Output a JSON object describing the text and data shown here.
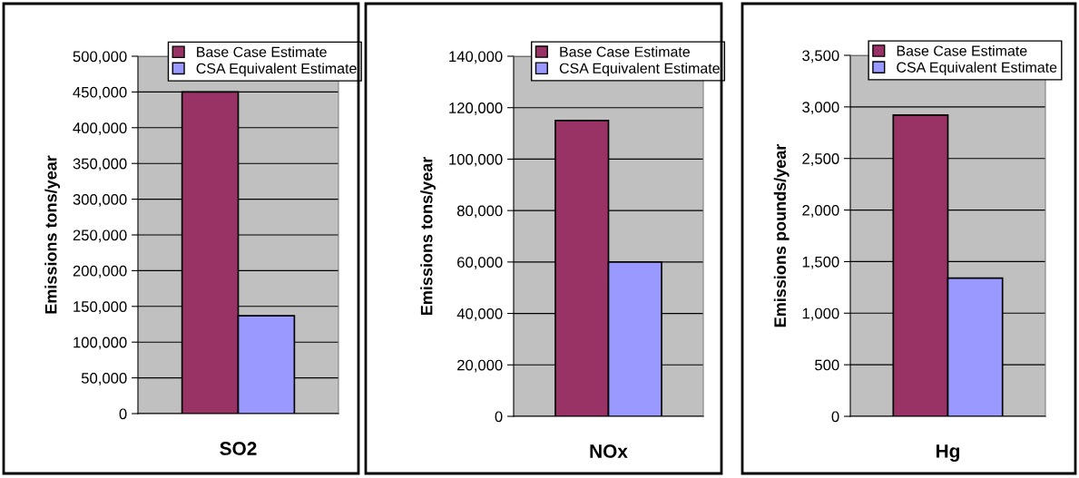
{
  "chart_data": [
    {
      "type": "bar",
      "categories": [
        "SO2"
      ],
      "ylabel": "Emissions tons/year",
      "ylim": [
        0,
        500000
      ],
      "yticks": [
        {
          "value": 0,
          "label": "0"
        },
        {
          "value": 50000,
          "label": "50,000"
        },
        {
          "value": 100000,
          "label": "100,000"
        },
        {
          "value": 150000,
          "label": "150,000"
        },
        {
          "value": 200000,
          "label": "200,000"
        },
        {
          "value": 250000,
          "label": "250,000"
        },
        {
          "value": 300000,
          "label": "300,000"
        },
        {
          "value": 350000,
          "label": "350,000"
        },
        {
          "value": 400000,
          "label": "400,000"
        },
        {
          "value": 450000,
          "label": "450,000"
        },
        {
          "value": 500000,
          "label": "500,000"
        }
      ],
      "series": [
        {
          "name": "Base Case Estimate",
          "color": "#993366",
          "values": [
            450000
          ]
        },
        {
          "name": "CSA Equivalent Estimate",
          "color": "#9999ff",
          "values": [
            137000
          ]
        }
      ],
      "grid": "y",
      "legend": "top right"
    },
    {
      "type": "bar",
      "categories": [
        "NOx"
      ],
      "ylabel": "Emissions tons/year",
      "ylim": [
        0,
        140000
      ],
      "yticks": [
        {
          "value": 0,
          "label": "0"
        },
        {
          "value": 20000,
          "label": "20,000"
        },
        {
          "value": 40000,
          "label": "40,000"
        },
        {
          "value": 60000,
          "label": "60,000"
        },
        {
          "value": 80000,
          "label": "80,000"
        },
        {
          "value": 100000,
          "label": "100,000"
        },
        {
          "value": 120000,
          "label": "120,000"
        },
        {
          "value": 140000,
          "label": "140,000"
        }
      ],
      "series": [
        {
          "name": "Base Case Estimate",
          "color": "#993366",
          "values": [
            115000
          ]
        },
        {
          "name": "CSA Equivalent Estimate",
          "color": "#9999ff",
          "values": [
            60000
          ]
        }
      ],
      "grid": "y",
      "legend": "top right"
    },
    {
      "type": "bar",
      "categories": [
        "Hg"
      ],
      "ylabel": "Emissions pounds/year",
      "ylim": [
        0,
        3500
      ],
      "yticks": [
        {
          "value": 0,
          "label": "0"
        },
        {
          "value": 500,
          "label": "500"
        },
        {
          "value": 1000,
          "label": "1,000"
        },
        {
          "value": 1500,
          "label": "1,500"
        },
        {
          "value": 2000,
          "label": "2,000"
        },
        {
          "value": 2500,
          "label": "2,500"
        },
        {
          "value": 3000,
          "label": "3,000"
        },
        {
          "value": 3500,
          "label": "3,500"
        }
      ],
      "series": [
        {
          "name": "Base Case Estimate",
          "color": "#993366",
          "values": [
            2920
          ]
        },
        {
          "name": "CSA Equivalent Estimate",
          "color": "#9999ff",
          "values": [
            1340
          ]
        }
      ],
      "grid": "y",
      "legend": "top right"
    }
  ]
}
